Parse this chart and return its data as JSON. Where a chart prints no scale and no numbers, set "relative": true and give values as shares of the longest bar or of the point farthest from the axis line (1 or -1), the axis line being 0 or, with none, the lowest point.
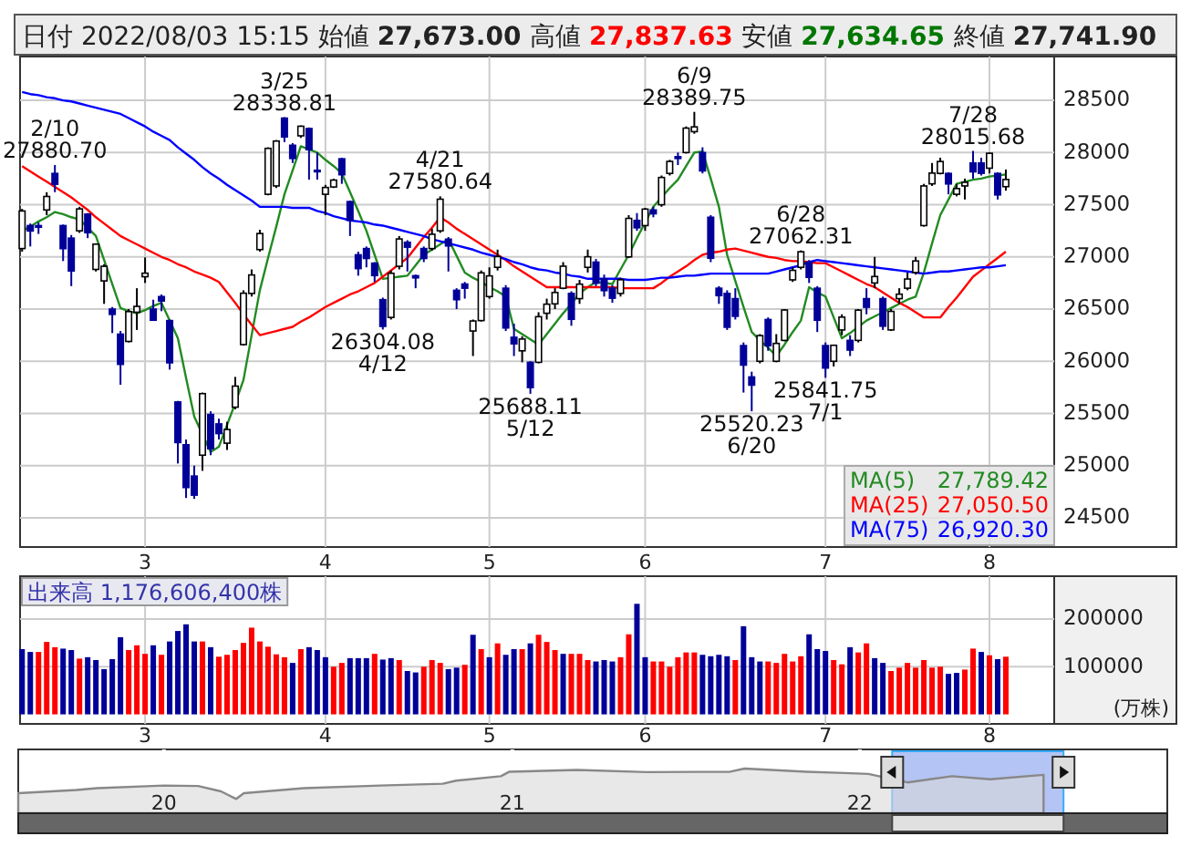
{
  "chart_data": [
    {
      "type": "candlestick",
      "title": "日付 2022/08/03 15:15 始値 27,673.00 高値 27,837.63 安値 27,634.65 終値 27,741.90",
      "categories": [
        null,
        null,
        null,
        null,
        null,
        null,
        null,
        null,
        null,
        null,
        null,
        null,
        null,
        null,
        null,
        "3",
        null,
        null,
        null,
        null,
        null,
        null,
        null,
        null,
        null,
        null,
        null,
        null,
        null,
        null,
        null,
        null,
        null,
        null,
        null,
        null,
        null,
        "4",
        null,
        null,
        null,
        null,
        null,
        null,
        null,
        null,
        null,
        null,
        null,
        null,
        null,
        null,
        null,
        null,
        null,
        null,
        null,
        "5",
        null,
        null,
        null,
        null,
        null,
        null,
        null,
        null,
        null,
        null,
        null,
        null,
        null,
        null,
        null,
        null,
        null,
        null,
        "6",
        null,
        null,
        null,
        null,
        null,
        null,
        null,
        null,
        null,
        null,
        null,
        null,
        null,
        null,
        null,
        null,
        null,
        null,
        null,
        null,
        null,
        "7",
        null,
        null,
        null,
        null,
        null,
        null,
        null,
        null,
        null,
        null,
        null,
        null,
        null,
        null,
        null,
        null,
        null,
        null,
        null,
        "8",
        null,
        null
      ],
      "ohlc": [
        [
          27080,
          27460,
          27050,
          27440
        ],
        [
          27300,
          27320,
          27100,
          27248
        ],
        [
          27300,
          27330,
          27220,
          27284
        ],
        [
          27450,
          27620,
          27400,
          27579
        ],
        [
          27800,
          27880.7,
          27620,
          27696
        ],
        [
          27300,
          27310,
          26960,
          27079
        ],
        [
          27180,
          27210,
          26720,
          26865
        ],
        [
          27250,
          27480,
          27230,
          27460
        ],
        [
          27410,
          27420,
          27180,
          27232
        ],
        [
          26880,
          27130,
          26860,
          27122
        ],
        [
          26770,
          26930,
          26550,
          26910
        ],
        [
          26500,
          26520,
          26270,
          26449
        ],
        [
          26260,
          26290,
          25775,
          25970
        ],
        [
          26190,
          26500,
          26180,
          26476
        ],
        [
          26470,
          26700,
          26300,
          26526
        ],
        [
          26810,
          26995,
          26750,
          26844
        ],
        [
          26500,
          26590,
          26390,
          26393
        ],
        [
          26620,
          26640,
          26480,
          26577
        ],
        [
          26390,
          26400,
          25920,
          25985
        ],
        [
          25610,
          25620,
          25020,
          25221
        ],
        [
          25200,
          25250,
          24690,
          24790
        ],
        [
          24900,
          25000,
          24681.74,
          24717
        ],
        [
          25100,
          25700,
          24950,
          25690
        ],
        [
          25490,
          25520,
          25100,
          25162
        ],
        [
          25400,
          25450,
          25250,
          25307
        ],
        [
          25215,
          25420,
          25150,
          25346
        ],
        [
          25560,
          25850,
          25540,
          25762
        ],
        [
          26160,
          26680,
          26150,
          26652
        ],
        [
          26650,
          26880,
          26620,
          26827
        ],
        [
          27070,
          27260,
          27050,
          27224
        ],
        [
          27600,
          28050,
          27590,
          28040
        ],
        [
          27680,
          28120,
          27660,
          28110
        ],
        [
          28330,
          28338.81,
          28100,
          28149
        ],
        [
          28070,
          28090,
          27900,
          27943
        ],
        [
          28160,
          28260,
          28140,
          28252
        ],
        [
          28230,
          28240,
          27740,
          28027
        ],
        [
          27830,
          28000,
          27740,
          27821
        ],
        [
          27600,
          27690,
          27400,
          27665
        ],
        [
          27670,
          27750,
          27660,
          27736
        ],
        [
          27940,
          27950,
          27700,
          27787
        ],
        [
          27530,
          27540,
          27200,
          27350
        ],
        [
          27020,
          27050,
          26820,
          26888
        ],
        [
          27080,
          27100,
          26900,
          26985
        ],
        [
          26940,
          26950,
          26760,
          26821
        ],
        [
          26590,
          26610,
          26304.08,
          26334
        ],
        [
          26420,
          26870,
          26400,
          26843
        ],
        [
          26910,
          27200,
          26880,
          27172
        ],
        [
          27140,
          27160,
          26860,
          27093
        ],
        [
          26820,
          26830,
          26700,
          26799
        ],
        [
          27080,
          27100,
          26950,
          26985
        ],
        [
          27080,
          27270,
          27060,
          27217
        ],
        [
          27250,
          27580.64,
          27230,
          27553
        ],
        [
          27170,
          27190,
          26860,
          27105
        ],
        [
          26680,
          26700,
          26500,
          26590
        ],
        [
          26740,
          26760,
          26600,
          26700
        ],
        [
          26290,
          26400,
          26050,
          26386
        ],
        [
          26390,
          26870,
          26380,
          26847
        ],
        [
          26620,
          26900,
          26600,
          26818
        ],
        [
          26900,
          27070,
          26870,
          27003
        ],
        [
          26700,
          26730,
          26290,
          26319
        ],
        [
          26230,
          26360,
          26050,
          26167
        ],
        [
          26100,
          26240,
          25990,
          26213
        ],
        [
          25990,
          26000,
          25688.11,
          25748
        ],
        [
          25990,
          26470,
          25980,
          26427
        ],
        [
          26460,
          26600,
          26400,
          26547
        ],
        [
          26550,
          26700,
          26500,
          26659
        ],
        [
          26700,
          26950,
          26690,
          26911
        ],
        [
          26650,
          26670,
          26340,
          26402
        ],
        [
          26600,
          26780,
          26550,
          26739
        ],
        [
          26900,
          27070,
          26850,
          27001
        ],
        [
          26950,
          26980,
          26720,
          26748
        ],
        [
          26790,
          26830,
          26620,
          26677
        ],
        [
          26700,
          26730,
          26560,
          26604
        ],
        [
          26650,
          26800,
          26620,
          26781
        ],
        [
          27000,
          27400,
          26990,
          27369
        ],
        [
          27350,
          27420,
          27250,
          27279
        ],
        [
          27300,
          27470,
          27250,
          27458
        ],
        [
          27450,
          27480,
          27380,
          27413
        ],
        [
          27500,
          27780,
          27480,
          27761
        ],
        [
          27800,
          27930,
          27780,
          27915
        ],
        [
          27960,
          28000,
          27880,
          27943
        ],
        [
          28000,
          28250,
          27990,
          28234
        ],
        [
          28200,
          28389.75,
          28180,
          28246
        ],
        [
          28000,
          28050,
          27800,
          27824
        ],
        [
          27380,
          27400,
          26950,
          26987
        ],
        [
          26700,
          26720,
          26550,
          26629
        ],
        [
          26650,
          26680,
          26300,
          26326
        ],
        [
          26600,
          26700,
          26400,
          26431
        ],
        [
          26150,
          26180,
          25700,
          25963
        ],
        [
          25850,
          25900,
          25520.23,
          25771
        ],
        [
          26000,
          26260,
          25980,
          26246
        ],
        [
          26400,
          26420,
          26100,
          26149
        ],
        [
          26000,
          26260,
          25990,
          26171
        ],
        [
          26200,
          26500,
          26190,
          26491
        ],
        [
          26780,
          26900,
          26760,
          26871
        ],
        [
          26900,
          27062.31,
          26880,
          27049
        ],
        [
          26950,
          26970,
          26750,
          26804
        ],
        [
          26700,
          26720,
          26280,
          26393
        ],
        [
          26150,
          26180,
          25841.75,
          25935
        ],
        [
          26000,
          26160,
          25950,
          26153
        ],
        [
          26300,
          26450,
          26250,
          26423
        ],
        [
          26200,
          26250,
          26050,
          26107
        ],
        [
          26200,
          26500,
          26180,
          26490
        ],
        [
          26600,
          26700,
          26450,
          26517
        ],
        [
          26750,
          27000,
          26700,
          26812
        ],
        [
          26600,
          26620,
          26300,
          26336
        ],
        [
          26300,
          26500,
          26290,
          26478
        ],
        [
          26600,
          26700,
          26550,
          26643
        ],
        [
          26700,
          26850,
          26680,
          26788
        ],
        [
          26850,
          27000,
          26830,
          26961
        ],
        [
          27300,
          27700,
          27290,
          27680
        ],
        [
          27700,
          27900,
          27680,
          27803
        ],
        [
          27800,
          27950,
          27790,
          27914
        ],
        [
          27800,
          27810,
          27600,
          27699
        ],
        [
          27600,
          27700,
          27580,
          27655
        ],
        [
          27680,
          27750,
          27550,
          27715
        ],
        [
          27900,
          28015.68,
          27750,
          27815
        ],
        [
          27900,
          27950,
          27780,
          27801
        ],
        [
          27850,
          28000,
          27800,
          27993
        ],
        [
          27800,
          27810,
          27550,
          27594
        ],
        [
          27673.0,
          27837.63,
          27634.65,
          27741.9
        ]
      ],
      "series": [
        {
          "name": "MA(5) 27,789.42",
          "type": "line",
          "color": "#228b22",
          "values": [
            27250,
            27290,
            27340,
            27380,
            27430,
            27410,
            27380,
            27360,
            27280,
            27200,
            26970,
            26740,
            26510,
            26480,
            26460,
            26490,
            26530,
            26560,
            26390,
            26220,
            25840,
            25470,
            25300,
            25130,
            25180,
            25390,
            25600,
            25820,
            26250,
            26680,
            26990,
            27290,
            27600,
            27830,
            28060,
            28030,
            28000,
            27930,
            27870,
            27800,
            27620,
            27440,
            27250,
            27020,
            26790,
            26800,
            26810,
            26820,
            26920,
            27020,
            27070,
            27120,
            27170,
            27010,
            26850,
            26800,
            26760,
            26710,
            26670,
            26620,
            26310,
            26260,
            26210,
            26160,
            26260,
            26360,
            26460,
            26550,
            26650,
            26710,
            26760,
            26750,
            26740,
            26880,
            27020,
            27180,
            27330,
            27480,
            27570,
            27660,
            27740,
            27870,
            28000,
            28010,
            27750,
            27480,
            27020,
            26770,
            26520,
            26280,
            26200,
            26130,
            26050,
            26160,
            26280,
            26390,
            26710,
            26660,
            26620,
            26420,
            26220,
            26270,
            26330,
            26390,
            26430,
            26470,
            26510,
            26550,
            26590,
            26620,
            26850,
            27130,
            27400,
            27550,
            27700,
            27720,
            27740,
            27750,
            27770,
            27780,
            27789.42
          ]
        },
        {
          "name": "MA(25) 27,050.50",
          "type": "line",
          "color": "#ff0000",
          "values": [
            27870,
            27820,
            27770,
            27720,
            27670,
            27620,
            27570,
            27510,
            27450,
            27380,
            27320,
            27260,
            27200,
            27160,
            27120,
            27080,
            27040,
            27000,
            26970,
            26930,
            26900,
            26860,
            26830,
            26800,
            26760,
            26660,
            26560,
            26450,
            26350,
            26250,
            26270,
            26290,
            26310,
            26330,
            26380,
            26420,
            26470,
            26520,
            26560,
            26600,
            26640,
            26670,
            26710,
            26750,
            26810,
            26870,
            26930,
            26990,
            27090,
            27190,
            27280,
            27380,
            27330,
            27270,
            27220,
            27170,
            27120,
            27070,
            27020,
            26970,
            26910,
            26860,
            26810,
            26760,
            26710,
            26710,
            26710,
            26710,
            26710,
            26710,
            26710,
            26710,
            26710,
            26700,
            26700,
            26700,
            26700,
            26700,
            26750,
            26810,
            26860,
            26910,
            26970,
            27020,
            27040,
            27050,
            27070,
            27080,
            27060,
            27040,
            27020,
            27000,
            26990,
            26970,
            26960,
            26960,
            26950,
            26940,
            26940,
            26900,
            26860,
            26820,
            26780,
            26740,
            26710,
            26660,
            26610,
            26560,
            26520,
            26470,
            26420,
            26420,
            26420,
            26520,
            26610,
            26710,
            26810,
            26870,
            26930,
            26990,
            27050.5
          ]
        },
        {
          "name": "MA(75) 26,920.30",
          "type": "line",
          "color": "#0000ff",
          "values": [
            28580,
            28560,
            28550,
            28530,
            28520,
            28500,
            28490,
            28470,
            28450,
            28430,
            28410,
            28390,
            28370,
            28330,
            28290,
            28250,
            28200,
            28160,
            28120,
            28050,
            27990,
            27930,
            27860,
            27800,
            27750,
            27690,
            27640,
            27590,
            27540,
            27480,
            27480,
            27480,
            27480,
            27470,
            27470,
            27470,
            27440,
            27420,
            27390,
            27370,
            27350,
            27340,
            27330,
            27310,
            27300,
            27280,
            27260,
            27240,
            27220,
            27200,
            27170,
            27150,
            27130,
            27110,
            27090,
            27070,
            27040,
            27020,
            27000,
            26980,
            26950,
            26930,
            26900,
            26880,
            26870,
            26850,
            26840,
            26820,
            26810,
            26790,
            26790,
            26790,
            26790,
            26790,
            26780,
            26780,
            26780,
            26790,
            26800,
            26800,
            26810,
            26820,
            26820,
            26830,
            26840,
            26840,
            26840,
            26840,
            26840,
            26840,
            26840,
            26840,
            26860,
            26880,
            26900,
            26920,
            26950,
            26970,
            26960,
            26950,
            26940,
            26930,
            26920,
            26910,
            26900,
            26890,
            26880,
            26870,
            26860,
            26850,
            26840,
            26850,
            26860,
            26860,
            26870,
            26880,
            26890,
            26900,
            26900,
            26910,
            26920.3
          ]
        }
      ],
      "ylim": [
        24220,
        28920
      ],
      "yticks": [
        24500,
        25000,
        25500,
        26000,
        26500,
        27000,
        27500,
        28000,
        28500
      ],
      "grid": true,
      "legend": "bottom right",
      "annotations": [
        {
          "text": "2/10\n27880.70",
          "y": 27880.7
        },
        {
          "text": "3/25\n28338.81",
          "y": 28338.81
        },
        {
          "text": "26304.08\n4/12",
          "y": 26304.08
        },
        {
          "text": "4/21\n27580.64",
          "y": 27580.64
        },
        {
          "text": "25688.11\n5/12",
          "y": 25688.11
        },
        {
          "text": "6/9\n28389.75",
          "y": 28389.75
        },
        {
          "text": "25520.23\n6/20",
          "y": 25520.23
        },
        {
          "text": "6/28\n27062.31",
          "y": 27062.31
        },
        {
          "text": "25841.75\n7/1",
          "y": 25841.75
        },
        {
          "text": "7/28\n28015.68",
          "y": 28015.68
        }
      ]
    },
    {
      "type": "bar",
      "title": "出来高  1,176,606,400株",
      "ylabel": "(万株)",
      "categories": [
        null,
        null,
        null,
        null,
        null,
        null,
        null,
        null,
        null,
        null,
        null,
        null,
        null,
        null,
        null,
        "3",
        null,
        null,
        null,
        null,
        null,
        null,
        null,
        null,
        null,
        null,
        null,
        null,
        null,
        null,
        null,
        null,
        null,
        null,
        null,
        null,
        null,
        "4",
        null,
        null,
        null,
        null,
        null,
        null,
        null,
        null,
        null,
        null,
        null,
        null,
        null,
        null,
        null,
        null,
        null,
        null,
        null,
        "5",
        null,
        null,
        null,
        null,
        null,
        null,
        null,
        null,
        null,
        null,
        null,
        null,
        null,
        null,
        null,
        null,
        null,
        null,
        "6",
        null,
        null,
        null,
        null,
        null,
        null,
        null,
        null,
        null,
        null,
        null,
        null,
        null,
        null,
        null,
        null,
        null,
        null,
        null,
        null,
        null,
        "7",
        null,
        null,
        null,
        null,
        null,
        null,
        null,
        null,
        null,
        null,
        null,
        null,
        null,
        null,
        null,
        null,
        null,
        null,
        null,
        "8",
        null,
        null
      ],
      "values": [
        137000,
        131000,
        131000,
        152000,
        141000,
        138000,
        135000,
        117000,
        120000,
        114000,
        95000,
        116000,
        162000,
        135000,
        145000,
        127000,
        145000,
        125000,
        153000,
        175000,
        189000,
        153000,
        153000,
        141000,
        121000,
        125000,
        135000,
        150000,
        182000,
        153000,
        142000,
        126000,
        120000,
        108000,
        137000,
        141000,
        135000,
        120000,
        100000,
        108000,
        118000,
        118000,
        118000,
        127000,
        115000,
        118000,
        114000,
        91000,
        88000,
        100000,
        114000,
        108000,
        95000,
        98000,
        104000,
        167000,
        137000,
        120000,
        149000,
        125000,
        137000,
        137000,
        149000,
        167000,
        152000,
        135000,
        127000,
        127000,
        127000,
        114000,
        111000,
        114000,
        111000,
        120000,
        168000,
        232000,
        120000,
        111000,
        111000,
        100000,
        120000,
        130000,
        130000,
        125000,
        122000,
        125000,
        122000,
        114000,
        185000,
        120000,
        111000,
        111000,
        108000,
        127000,
        111000,
        122000,
        168000,
        137000,
        133000,
        114000,
        105000,
        141000,
        130000,
        149000,
        118000,
        108000,
        91000,
        98000,
        108000,
        98000,
        114000,
        98000,
        100000,
        85000,
        87000,
        94000,
        138000,
        131000,
        124000,
        116000,
        121000
      ],
      "colors": [
        "#000099",
        "#000099",
        "#ff0000",
        "#ff0000",
        "#ff0000",
        "#000099",
        "#000099",
        "#ff0000",
        "#000099",
        "#000099",
        "#000099",
        "#000099",
        "#000099",
        "#ff0000",
        "#ff0000",
        "#ff0000",
        "#000099",
        "#ff0000",
        "#000099",
        "#000099",
        "#000099",
        "#000099",
        "#ff0000",
        "#000099",
        "#ff0000",
        "#ff0000",
        "#ff0000",
        "#ff0000",
        "#ff0000",
        "#ff0000",
        "#ff0000",
        "#ff0000",
        "#ff0000",
        "#000099",
        "#ff0000",
        "#000099",
        "#000099",
        "#000099",
        "#ff0000",
        "#ff0000",
        "#000099",
        "#000099",
        "#000099",
        "#ff0000",
        "#000099",
        "#000099",
        "#ff0000",
        "#000099",
        "#000099",
        "#ff0000",
        "#ff0000",
        "#ff0000",
        "#000099",
        "#000099",
        "#ff0000",
        "#000099",
        "#ff0000",
        "#000099",
        "#ff0000",
        "#000099",
        "#000099",
        "#ff0000",
        "#000099",
        "#ff0000",
        "#ff0000",
        "#ff0000",
        "#000099",
        "#ff0000",
        "#ff0000",
        "#ff0000",
        "#000099",
        "#000099",
        "#000099",
        "#ff0000",
        "#ff0000",
        "#000099",
        "#000099",
        "#ff0000",
        "#ff0000",
        "#ff0000",
        "#ff0000",
        "#ff0000",
        "#ff0000",
        "#000099",
        "#000099",
        "#000099",
        "#000099",
        "#ff0000",
        "#000099",
        "#000099",
        "#000099",
        "#ff0000",
        "#ff0000",
        "#ff0000",
        "#ff0000",
        "#ff0000",
        "#000099",
        "#000099",
        "#000099",
        "#ff0000",
        "#ff0000",
        "#000099",
        "#ff0000",
        "#ff0000",
        "#000099",
        "#000099",
        "#ff0000",
        "#ff0000",
        "#ff0000",
        "#ff0000",
        "#ff0000",
        "#ff0000",
        "#ff0000",
        "#000099",
        "#000099",
        "#ff0000",
        "#ff0000",
        "#000099",
        "#ff0000",
        "#000099",
        "#ff0000"
      ],
      "ylim": [
        -20000,
        290000
      ],
      "yticks": [
        100000,
        200000
      ],
      "grid": true
    },
    {
      "type": "area",
      "relative": true,
      "color": "#888888",
      "x": [
        "2019-08-01",
        "2019-10-01",
        "2019-10-23",
        "2020-01-01",
        "2020-02-06",
        "2020-03-01",
        "2020-03-17",
        "2020-03-25",
        "2020-05-27",
        "2020-08-15",
        "2020-10-20",
        "2020-11-03",
        "2020-12-20",
        "2020-12-29",
        "2021-03-10",
        "2021-05-22",
        "2021-08-18",
        "2021-09-02",
        "2021-11-06",
        "2021-12-16",
        "2022-01-10",
        "2022-02-20",
        "2022-04-08",
        "2022-05-18",
        "2022-07-13"
      ],
      "values": [
        0.45,
        0.52,
        0.56,
        0.62,
        0.61,
        0.49,
        0.32,
        0.45,
        0.56,
        0.62,
        0.66,
        0.73,
        0.83,
        0.93,
        0.97,
        0.92,
        0.93,
        1,
        0.93,
        0.9,
        0.88,
        0.69,
        0.83,
        0.76,
        0.86
      ],
      "xlim": [
        "2019-08-01",
        "2022-11-20"
      ],
      "xticks": [
        {
          "value": "2020-01-01",
          "label": "20"
        },
        {
          "value": "2021-01-01",
          "label": "21"
        },
        {
          "value": "2022-01-01",
          "label": "22"
        }
      ],
      "bands": [
        {
          "axis": "x",
          "from": "2022-02-04",
          "to": "2022-08-03",
          "color": "#b4c4f4"
        }
      ],
      "grid": "x"
    }
  ]
}
